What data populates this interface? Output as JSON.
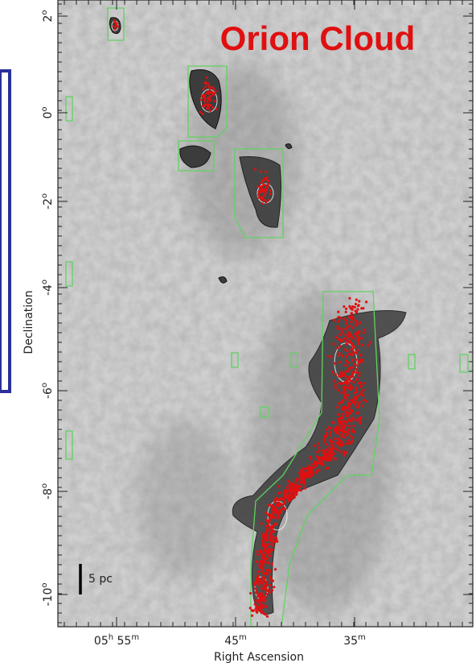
{
  "title": "Orion Cloud",
  "axes": {
    "y_label": "Declination",
    "x_label": "Right Ascension",
    "y_ticks": [
      [
        {
          "t": "2"
        },
        {
          "sup": "o"
        }
      ],
      [
        {
          "t": "0"
        },
        {
          "sup": "o"
        }
      ],
      [
        {
          "t": "-2"
        },
        {
          "sup": "o"
        }
      ],
      [
        {
          "t": "-4"
        },
        {
          "sup": "o"
        }
      ],
      [
        {
          "t": "-6"
        },
        {
          "sup": "o"
        }
      ],
      [
        {
          "t": "-8"
        },
        {
          "sup": "o"
        }
      ],
      [
        {
          "t": "-10"
        },
        {
          "sup": "o"
        }
      ]
    ],
    "x_ticks": [
      [
        {
          "t": "05"
        },
        {
          "sup": "h"
        },
        {
          "t": " 55"
        },
        {
          "sup": "m"
        }
      ],
      [
        {
          "t": "45"
        },
        {
          "sup": "m"
        }
      ],
      [
        {
          "t": "35"
        },
        {
          "sup": "m"
        }
      ]
    ]
  },
  "scale_bar": "5 pc"
}
